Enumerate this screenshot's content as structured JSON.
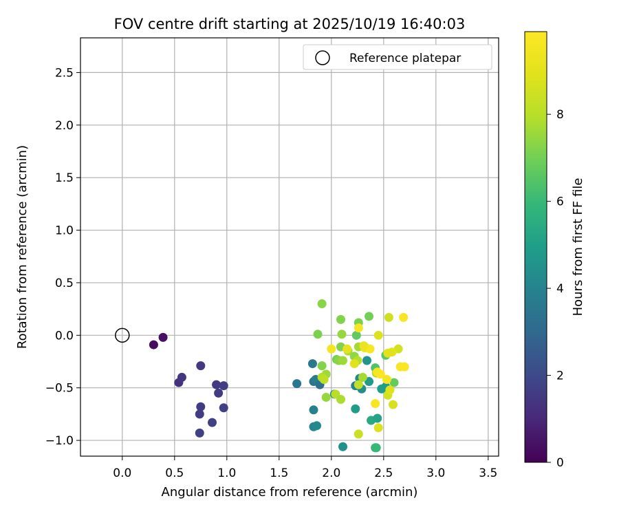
{
  "chart_data": {
    "type": "scatter",
    "title": "FOV centre drift starting at 2025/10/19 16:40:03",
    "xlabel": "Angular distance from reference (arcmin)",
    "ylabel": "Rotation from reference (arcmin)",
    "xlim": [
      -0.4,
      3.6
    ],
    "ylim": [
      -1.15,
      2.83
    ],
    "x_ticks": [
      "0.0",
      "0.5",
      "1.0",
      "1.5",
      "2.0",
      "2.5",
      "3.0",
      "3.5"
    ],
    "x_tick_values": [
      0.0,
      0.5,
      1.0,
      1.5,
      2.0,
      2.5,
      3.0,
      3.5
    ],
    "y_ticks": [
      "−1.0",
      "−0.5",
      "0.0",
      "0.5",
      "1.0",
      "1.5",
      "2.0",
      "2.5"
    ],
    "y_tick_values": [
      -1.0,
      -0.5,
      0.0,
      0.5,
      1.0,
      1.5,
      2.0,
      2.5
    ],
    "grid": true,
    "legend": {
      "position": "top-right",
      "entries": [
        {
          "label": "Reference platepar",
          "marker": "open-circle"
        }
      ]
    },
    "reference_point": {
      "x": 0.0,
      "y": 0.0
    },
    "colorbar": {
      "label": "Hours from first FF file",
      "colormap": "viridis",
      "range": [
        0,
        9.9
      ],
      "ticks": [
        "0",
        "2",
        "4",
        "6",
        "8"
      ],
      "tick_values": [
        0,
        2,
        4,
        6,
        8
      ]
    },
    "points": [
      {
        "x": 0.3,
        "y": -0.09,
        "c": 0.3
      },
      {
        "x": 0.39,
        "y": -0.02,
        "c": 0.4
      },
      {
        "x": 0.54,
        "y": -0.45,
        "c": 1.3
      },
      {
        "x": 0.57,
        "y": -0.4,
        "c": 1.4
      },
      {
        "x": 0.75,
        "y": -0.29,
        "c": 1.5
      },
      {
        "x": 0.9,
        "y": -0.47,
        "c": 1.5
      },
      {
        "x": 0.97,
        "y": -0.48,
        "c": 1.6
      },
      {
        "x": 0.92,
        "y": -0.55,
        "c": 1.6
      },
      {
        "x": 0.75,
        "y": -0.68,
        "c": 1.6
      },
      {
        "x": 0.74,
        "y": -0.75,
        "c": 1.6
      },
      {
        "x": 0.97,
        "y": -0.69,
        "c": 1.7
      },
      {
        "x": 0.86,
        "y": -0.83,
        "c": 1.7
      },
      {
        "x": 0.74,
        "y": -0.93,
        "c": 1.7
      },
      {
        "x": 1.67,
        "y": -0.46,
        "c": 3.5
      },
      {
        "x": 1.82,
        "y": -0.27,
        "c": 3.6
      },
      {
        "x": 1.83,
        "y": -0.44,
        "c": 3.4
      },
      {
        "x": 1.85,
        "y": -0.42,
        "c": 3.8
      },
      {
        "x": 1.89,
        "y": -0.47,
        "c": 3.3
      },
      {
        "x": 1.83,
        "y": -0.71,
        "c": 3.9
      },
      {
        "x": 1.83,
        "y": -0.87,
        "c": 4.1
      },
      {
        "x": 1.86,
        "y": -0.86,
        "c": 4.2
      },
      {
        "x": 2.03,
        "y": -0.56,
        "c": 4.3
      },
      {
        "x": 2.11,
        "y": -1.06,
        "c": 4.5
      },
      {
        "x": 2.23,
        "y": -0.48,
        "c": 4.0
      },
      {
        "x": 2.27,
        "y": -0.41,
        "c": 4.2
      },
      {
        "x": 2.29,
        "y": -0.51,
        "c": 4.4
      },
      {
        "x": 2.34,
        "y": -0.24,
        "c": 4.6
      },
      {
        "x": 2.36,
        "y": -0.44,
        "c": 4.8
      },
      {
        "x": 2.23,
        "y": -0.7,
        "c": 4.9
      },
      {
        "x": 2.38,
        "y": -0.81,
        "c": 5.4
      },
      {
        "x": 2.44,
        "y": -0.79,
        "c": 5.2
      },
      {
        "x": 2.42,
        "y": -1.07,
        "c": 5.8
      },
      {
        "x": 2.43,
        "y": -1.07,
        "c": 6.0
      },
      {
        "x": 2.48,
        "y": -0.51,
        "c": 5.0
      },
      {
        "x": 2.52,
        "y": -0.49,
        "c": 4.9
      },
      {
        "x": 2.42,
        "y": -0.31,
        "c": 6.4
      },
      {
        "x": 2.52,
        "y": -0.19,
        "c": 6.6
      },
      {
        "x": 2.6,
        "y": -0.45,
        "c": 6.8
      },
      {
        "x": 2.24,
        "y": 0.0,
        "c": 6.7
      },
      {
        "x": 2.26,
        "y": 0.12,
        "c": 7.1
      },
      {
        "x": 2.36,
        "y": 0.18,
        "c": 7.0
      },
      {
        "x": 2.09,
        "y": 0.15,
        "c": 7.2
      },
      {
        "x": 1.91,
        "y": 0.3,
        "c": 7.3
      },
      {
        "x": 1.87,
        "y": 0.01,
        "c": 7.1
      },
      {
        "x": 2.1,
        "y": 0.01,
        "c": 7.5
      },
      {
        "x": 2.09,
        "y": -0.11,
        "c": 7.2
      },
      {
        "x": 2.05,
        "y": -0.23,
        "c": 7.0
      },
      {
        "x": 2.07,
        "y": -0.24,
        "c": 7.3
      },
      {
        "x": 2.11,
        "y": -0.24,
        "c": 7.6
      },
      {
        "x": 2.16,
        "y": -0.15,
        "c": 7.8
      },
      {
        "x": 2.22,
        "y": -0.2,
        "c": 7.4
      },
      {
        "x": 2.25,
        "y": -0.24,
        "c": 7.9
      },
      {
        "x": 2.26,
        "y": -0.11,
        "c": 7.7
      },
      {
        "x": 1.91,
        "y": -0.29,
        "c": 7.2
      },
      {
        "x": 1.95,
        "y": -0.37,
        "c": 7.6
      },
      {
        "x": 1.91,
        "y": -0.4,
        "c": 7.9
      },
      {
        "x": 1.93,
        "y": -0.42,
        "c": 8.1
      },
      {
        "x": 1.95,
        "y": -0.59,
        "c": 7.5
      },
      {
        "x": 2.04,
        "y": -0.56,
        "c": 8.0
      },
      {
        "x": 2.09,
        "y": -0.61,
        "c": 7.8
      },
      {
        "x": 2.26,
        "y": -0.47,
        "c": 8.2
      },
      {
        "x": 2.3,
        "y": -0.4,
        "c": 7.7
      },
      {
        "x": 2.32,
        "y": -0.11,
        "c": 8.3
      },
      {
        "x": 2.43,
        "y": -0.36,
        "c": 8.0
      },
      {
        "x": 2.26,
        "y": -0.94,
        "c": 8.4
      },
      {
        "x": 2.45,
        "y": -0.88,
        "c": 8.8
      },
      {
        "x": 2.54,
        "y": -0.57,
        "c": 8.6
      },
      {
        "x": 2.56,
        "y": -0.52,
        "c": 8.9
      },
      {
        "x": 2.59,
        "y": -0.66,
        "c": 8.7
      },
      {
        "x": 2.45,
        "y": 0.0,
        "c": 8.8
      },
      {
        "x": 2.55,
        "y": 0.17,
        "c": 8.5
      },
      {
        "x": 2.64,
        "y": -0.13,
        "c": 8.6
      },
      {
        "x": 2.54,
        "y": -0.17,
        "c": 9.0
      },
      {
        "x": 2.58,
        "y": -0.16,
        "c": 8.9
      },
      {
        "x": 2.22,
        "y": -0.27,
        "c": 9.0
      },
      {
        "x": 2.0,
        "y": -0.13,
        "c": 9.5
      },
      {
        "x": 2.26,
        "y": 0.07,
        "c": 9.6
      },
      {
        "x": 2.32,
        "y": -0.12,
        "c": 9.4
      },
      {
        "x": 2.37,
        "y": -0.13,
        "c": 9.7
      },
      {
        "x": 2.44,
        "y": -0.35,
        "c": 9.6
      },
      {
        "x": 2.47,
        "y": -0.37,
        "c": 9.8
      },
      {
        "x": 2.53,
        "y": -0.42,
        "c": 9.5
      },
      {
        "x": 2.42,
        "y": -0.65,
        "c": 9.6
      },
      {
        "x": 2.66,
        "y": -0.3,
        "c": 9.7
      },
      {
        "x": 2.7,
        "y": -0.3,
        "c": 9.8
      },
      {
        "x": 2.69,
        "y": 0.17,
        "c": 9.7
      },
      {
        "x": 2.15,
        "y": -0.13,
        "c": 9.1
      },
      {
        "x": 2.31,
        "y": -0.1,
        "c": 9.3
      }
    ]
  }
}
